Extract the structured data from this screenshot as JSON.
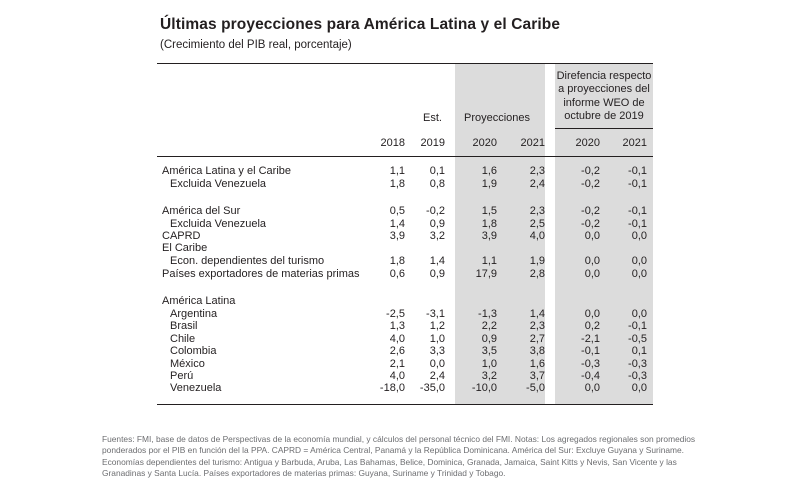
{
  "title": "Últimas proyecciones para América Latina y el Caribe",
  "subtitle": "(Crecimiento del PIB real, porcentaje)",
  "header": {
    "est_label": "Est.",
    "proj_label": "Proyecciones",
    "diff_label": [
      "Direfencia respecto",
      "a proyecciones del",
      "informe WEO de",
      "octubre de 2019"
    ],
    "years": [
      "2018",
      "2019",
      "2020",
      "2021",
      "2020",
      "2021"
    ]
  },
  "rows": [
    {
      "label": "América Latina y el Caribe",
      "indent": false,
      "values": [
        "1,1",
        "0,1",
        "1,6",
        "2,3",
        "-0,2",
        "-0,1"
      ]
    },
    {
      "label": "Excluida Venezuela",
      "indent": true,
      "values": [
        "1,8",
        "0,8",
        "1,9",
        "2,4",
        "-0,2",
        "-0,1"
      ]
    },
    {
      "label": "América del Sur",
      "indent": false,
      "values": [
        "0,5",
        "-0,2",
        "1,5",
        "2,3",
        "-0,2",
        "-0,1"
      ]
    },
    {
      "label": "Excluida Venezuela",
      "indent": true,
      "values": [
        "1,4",
        "0,9",
        "1,8",
        "2,5",
        "-0,2",
        "-0,1"
      ]
    },
    {
      "label": "CAPRD",
      "indent": false,
      "values": [
        "3,9",
        "3,2",
        "3,9",
        "4,0",
        "0,0",
        "0,0"
      ]
    },
    {
      "label": "El Caribe",
      "indent": false,
      "values": [
        "",
        "",
        "",
        "",
        "",
        ""
      ]
    },
    {
      "label": "Econ. dependientes del turismo",
      "indent": true,
      "values": [
        "1,8",
        "1,4",
        "1,1",
        "1,9",
        "0,0",
        "0,0"
      ]
    },
    {
      "label": "Países exportadores de materias primas",
      "indent": false,
      "values": [
        "0,6",
        "0,9",
        "17,9",
        "2,8",
        "0,0",
        "0,0"
      ]
    },
    {
      "label": "América Latina",
      "indent": false,
      "values": [
        "",
        "",
        "",
        "",
        "",
        ""
      ]
    },
    {
      "label": "Argentina",
      "indent": true,
      "values": [
        "-2,5",
        "-3,1",
        "-1,3",
        "1,4",
        "0,0",
        "0,0"
      ]
    },
    {
      "label": "Brasil",
      "indent": true,
      "values": [
        "1,3",
        "1,2",
        "2,2",
        "2,3",
        "0,2",
        "-0,1"
      ]
    },
    {
      "label": "Chile",
      "indent": true,
      "values": [
        "4,0",
        "1,0",
        "0,9",
        "2,7",
        "-2,1",
        "-0,5"
      ]
    },
    {
      "label": "Colombia",
      "indent": true,
      "values": [
        "2,6",
        "3,3",
        "3,5",
        "3,8",
        "-0,1",
        "0,1"
      ]
    },
    {
      "label": "México",
      "indent": true,
      "values": [
        "2,1",
        "0,0",
        "1,0",
        "1,6",
        "-0,3",
        "-0,3"
      ]
    },
    {
      "label": "Perú",
      "indent": true,
      "values": [
        "4,0",
        "2,4",
        "3,2",
        "3,7",
        "-0,4",
        "-0,3"
      ]
    },
    {
      "label": "Venezuela",
      "indent": true,
      "values": [
        "-18,0",
        "-35,0",
        "-10,0",
        "-5,0",
        "0,0",
        "0,0"
      ]
    }
  ],
  "footnote": "Fuentes: FMI, base de datos de Perspectivas de la economía mundial, y cálculos del personal técnico del FMI. Notas: Los agregados regionales son promedios ponderados por el PIB en función del la PPA. CAPRD = América Central, Panamá y la República Dominicana. América del Sur: Excluye Guyana y Suriname. Economías dependientes del turismo: Antigua y Barbuda, Aruba, Las Bahamas, Belice, Dominica, Granada, Jamaica, Saint Kitts y Nevis, San Vicente y las Granadinas y Santa Lucía. Países exportadores de materias primas: Guyana, Suriname y Trinidad y Tobago."
}
